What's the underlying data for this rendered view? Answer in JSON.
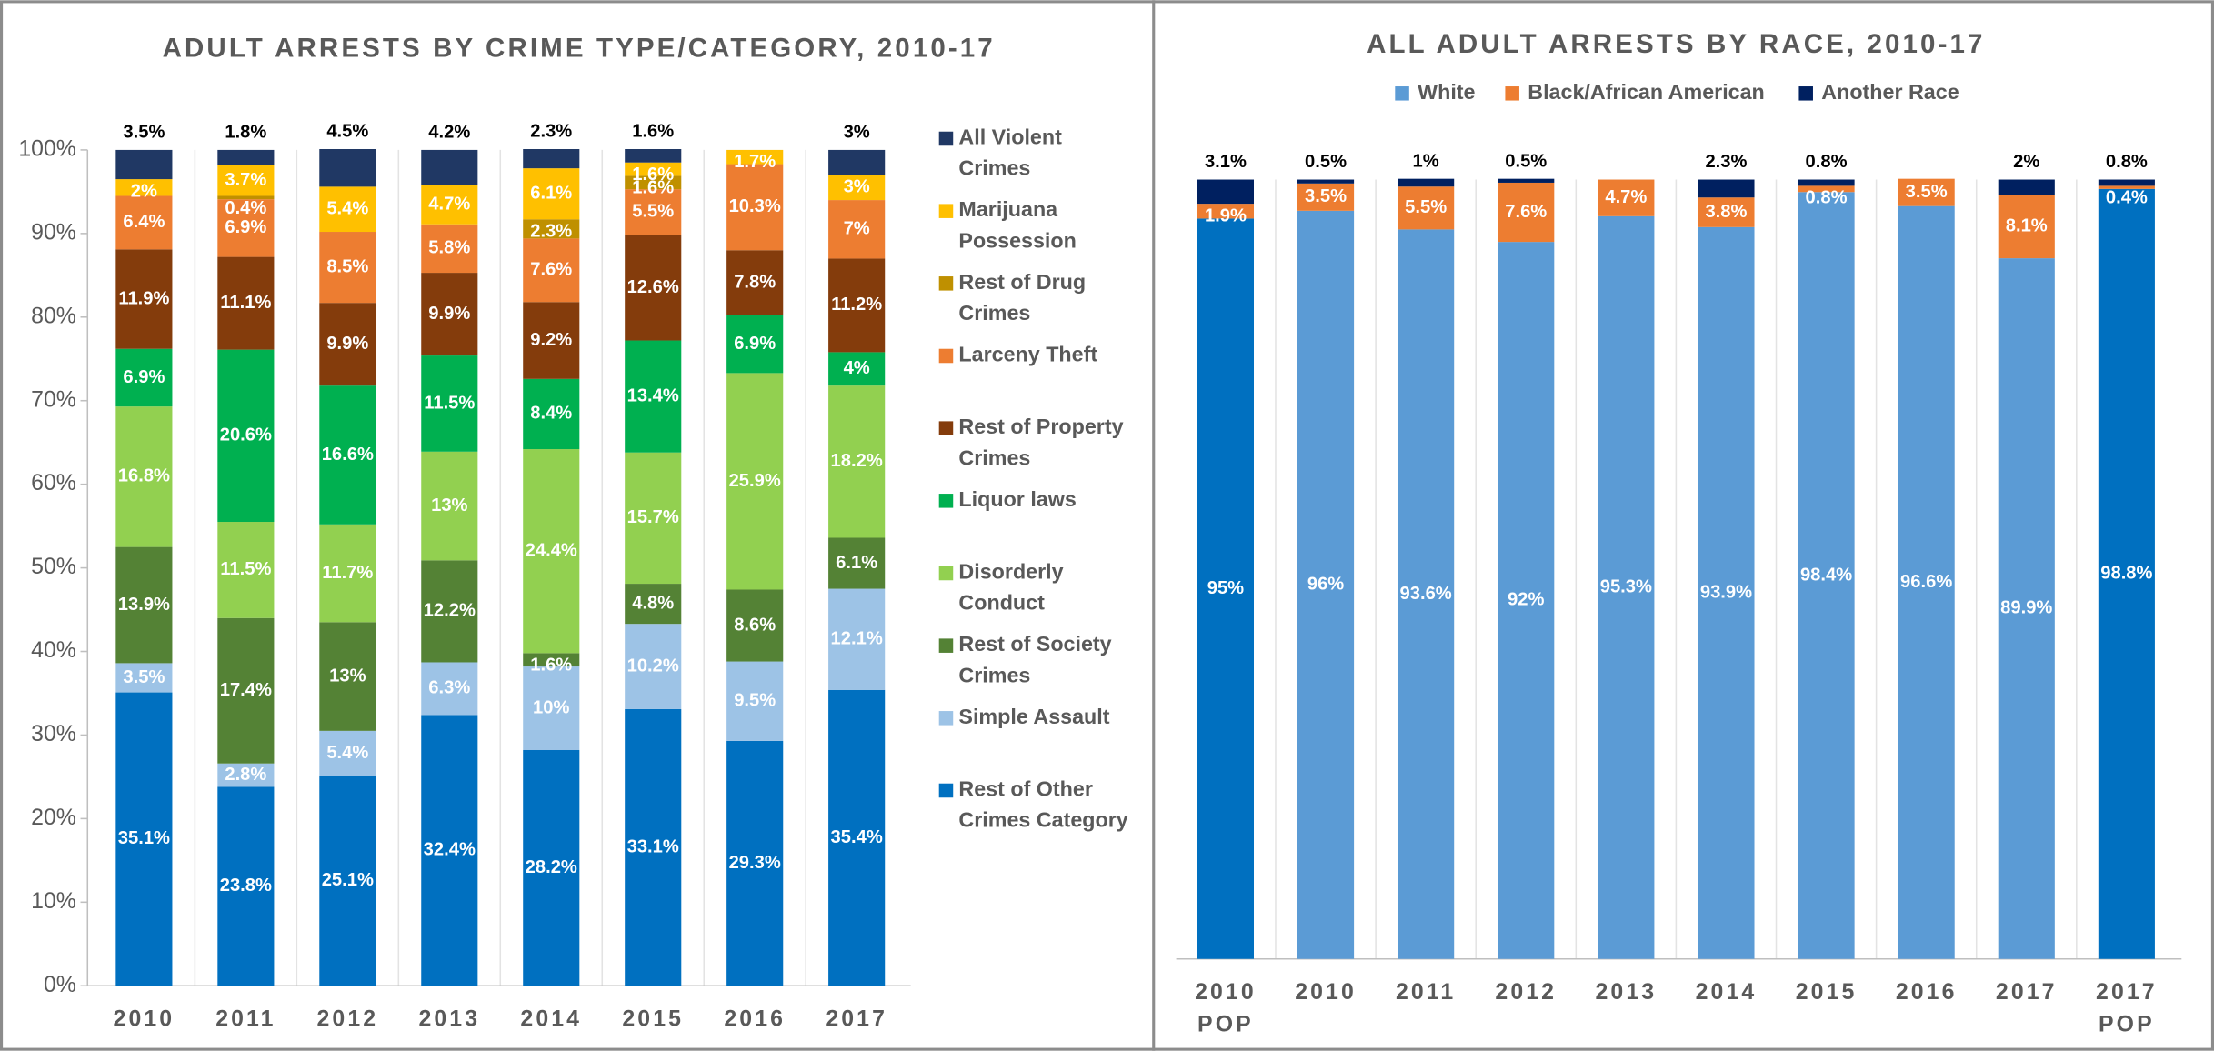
{
  "chart_data": [
    {
      "type": "bar",
      "stacked": true,
      "title": "ADULT ARRESTS BY CRIME TYPE/CATEGORY, 2010-17",
      "categories": [
        "2010",
        "2011",
        "2012",
        "2013",
        "2014",
        "2015",
        "2016",
        "2017"
      ],
      "ylim": [
        0,
        100
      ],
      "yticks": [
        {
          "value": 0,
          "label": "0%"
        },
        {
          "value": 10,
          "label": "10%"
        },
        {
          "value": 20,
          "label": "20%"
        },
        {
          "value": 30,
          "label": "30%"
        },
        {
          "value": 40,
          "label": "40%"
        },
        {
          "value": 50,
          "label": "50%"
        },
        {
          "value": 60,
          "label": "60%"
        },
        {
          "value": 70,
          "label": "70%"
        },
        {
          "value": 80,
          "label": "80%"
        },
        {
          "value": 90,
          "label": "90%"
        },
        {
          "value": 100,
          "label": "100%"
        }
      ],
      "legend": "right",
      "series": [
        {
          "name": "Rest of Other Crimes Category",
          "color": "#0070c0",
          "values": [
            35.1,
            23.8,
            25.1,
            32.4,
            28.2,
            33.1,
            29.3,
            35.4
          ],
          "value_labels": [
            "35.1%",
            "23.8%",
            "25.1%",
            "32.4%",
            "28.2%",
            "33.1%",
            "29.3%",
            "35.4%"
          ]
        },
        {
          "name": "Simple Assault",
          "color": "#9dc3e6",
          "values": [
            3.5,
            2.8,
            5.4,
            6.3,
            10,
            10.2,
            9.5,
            12.1
          ],
          "value_labels": [
            "3.5%",
            "2.8%",
            "5.4%",
            "6.3%",
            "10%",
            "10.2%",
            "9.5%",
            "12.1%"
          ]
        },
        {
          "name": "Rest of Society Crimes",
          "color": "#548235",
          "values": [
            13.9,
            17.4,
            13,
            12.2,
            1.6,
            4.8,
            8.6,
            6.1
          ],
          "value_labels": [
            "13.9%",
            "17.4%",
            "13%",
            "12.2%",
            "1.6%",
            "4.8%",
            "8.6%",
            "6.1%"
          ]
        },
        {
          "name": "Disorderly Conduct",
          "color": "#92d050",
          "values": [
            16.8,
            11.5,
            11.7,
            13,
            24.4,
            15.7,
            25.9,
            18.2
          ],
          "value_labels": [
            "16.8%",
            "11.5%",
            "11.7%",
            "13%",
            "24.4%",
            "15.7%",
            "25.9%",
            "18.2%"
          ]
        },
        {
          "name": "Liquor laws",
          "color": "#00b050",
          "values": [
            6.9,
            20.6,
            16.6,
            11.5,
            8.4,
            13.4,
            6.9,
            4
          ],
          "value_labels": [
            "6.9%",
            "20.6%",
            "16.6%",
            "11.5%",
            "8.4%",
            "13.4%",
            "6.9%",
            "4%"
          ]
        },
        {
          "name": "Rest of Property Crimes",
          "color": "#843c0c",
          "values": [
            11.9,
            11.1,
            9.9,
            9.9,
            9.2,
            12.6,
            7.8,
            11.2
          ],
          "value_labels": [
            "11.9%",
            "11.1%",
            "9.9%",
            "9.9%",
            "9.2%",
            "12.6%",
            "7.8%",
            "11.2%"
          ]
        },
        {
          "name": "Larceny Theft",
          "color": "#ed7d31",
          "values": [
            6.4,
            6.9,
            8.5,
            5.8,
            7.6,
            5.5,
            10.3,
            7
          ],
          "value_labels": [
            "6.4%",
            "6.9%",
            "8.5%",
            "5.8%",
            "7.6%",
            "5.5%",
            "10.3%",
            "7%"
          ]
        },
        {
          "name": "Rest of Drug Crimes",
          "color": "#bf9000",
          "values": [
            null,
            0.4,
            null,
            null,
            2.3,
            1.6,
            null,
            null
          ],
          "value_labels": [
            null,
            "0.4%",
            null,
            null,
            "2.3%",
            "1.6%",
            null,
            null
          ]
        },
        {
          "name": "Marijuana Possession",
          "color": "#ffc000",
          "values": [
            2,
            3.7,
            5.4,
            4.7,
            6.1,
            1.6,
            1.7,
            3
          ],
          "value_labels": [
            "2%",
            "3.7%",
            "5.4%",
            "4.7%",
            "6.1%",
            "1.6%",
            "1.7%",
            "3%"
          ]
        },
        {
          "name": "All Violent Crimes",
          "color": "#203864",
          "values": [
            3.5,
            1.8,
            4.5,
            4.2,
            2.3,
            1.6,
            null,
            3
          ],
          "value_labels": [
            "3.5%",
            "1.8%",
            "4.5%",
            "4.2%",
            "2.3%",
            "1.6%",
            null,
            "3%"
          ]
        }
      ]
    },
    {
      "type": "bar",
      "stacked": true,
      "title": "ALL ADULT ARRESTS BY RACE, 2010-17",
      "categories": [
        "2010 POP",
        "2010",
        "2011",
        "2012",
        "2013",
        "2014",
        "2015",
        "2016",
        "2017",
        "2017 POP"
      ],
      "ylim": [
        0,
        100
      ],
      "legend": "top",
      "series": [
        {
          "name": "White",
          "color": "#5b9bd5",
          "colors": [
            "#0070c0",
            "#5b9bd5",
            "#5b9bd5",
            "#5b9bd5",
            "#5b9bd5",
            "#5b9bd5",
            "#5b9bd5",
            "#5b9bd5",
            "#5b9bd5",
            "#0070c0"
          ],
          "values": [
            95,
            96,
            93.6,
            92,
            95.3,
            93.9,
            98.4,
            96.6,
            89.9,
            98.8
          ],
          "value_labels": [
            "95%",
            "96%",
            "93.6%",
            "92%",
            "95.3%",
            "93.9%",
            "98.4%",
            "96.6%",
            "89.9%",
            "98.8%"
          ]
        },
        {
          "name": "Black/African American",
          "color": "#ed7d31",
          "values": [
            1.9,
            3.5,
            5.5,
            7.6,
            4.7,
            3.8,
            0.8,
            3.5,
            8.1,
            0.4
          ],
          "value_labels": [
            "1.9%",
            "3.5%",
            "5.5%",
            "7.6%",
            "4.7%",
            "3.8%",
            "0.8%",
            "3.5%",
            "8.1%",
            "0.4%"
          ]
        },
        {
          "name": "Another Race",
          "color": "#002060",
          "values": [
            3.1,
            0.5,
            1,
            0.5,
            null,
            2.3,
            0.8,
            null,
            2,
            0.8
          ],
          "value_labels": [
            "3.1%",
            "0.5%",
            "1%",
            "0.5%",
            null,
            "2.3%",
            "0.8%",
            null,
            "2%",
            "0.8%"
          ]
        }
      ]
    }
  ]
}
